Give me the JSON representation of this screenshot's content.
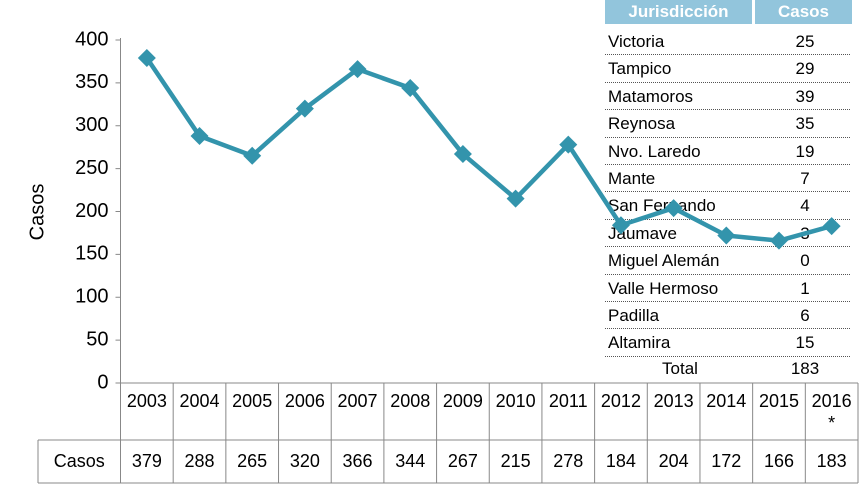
{
  "chart_data": {
    "type": "line",
    "y_label": "Casos",
    "categories": [
      "2003",
      "2004",
      "2005",
      "2006",
      "2007",
      "2008",
      "2009",
      "2010",
      "2011",
      "2012",
      "2013",
      "2014",
      "2015",
      "2016*"
    ],
    "series": [
      {
        "name": "Casos",
        "color": "#3394ac",
        "values": [
          379,
          288,
          265,
          320,
          366,
          344,
          267,
          215,
          278,
          184,
          204,
          172,
          166,
          183
        ]
      }
    ],
    "ylim": [
      0,
      400
    ],
    "yticks": [
      0,
      50,
      100,
      150,
      200,
      250,
      300,
      350,
      400
    ]
  },
  "table": {
    "header": [
      "Jurisdicción",
      "Casos"
    ],
    "rows": [
      [
        "Victoria",
        25
      ],
      [
        "Tampico",
        29
      ],
      [
        "Matamoros",
        39
      ],
      [
        "Reynosa",
        35
      ],
      [
        "Nvo. Laredo",
        19
      ],
      [
        "Mante",
        7
      ],
      [
        "San Fernando",
        4
      ],
      [
        "Jaumave",
        3
      ],
      [
        "Miguel Alemán",
        0
      ],
      [
        "Valle Hermoso",
        1
      ],
      [
        "Padilla",
        6
      ],
      [
        "Altamira",
        15
      ]
    ],
    "total": [
      "Total",
      183
    ]
  }
}
